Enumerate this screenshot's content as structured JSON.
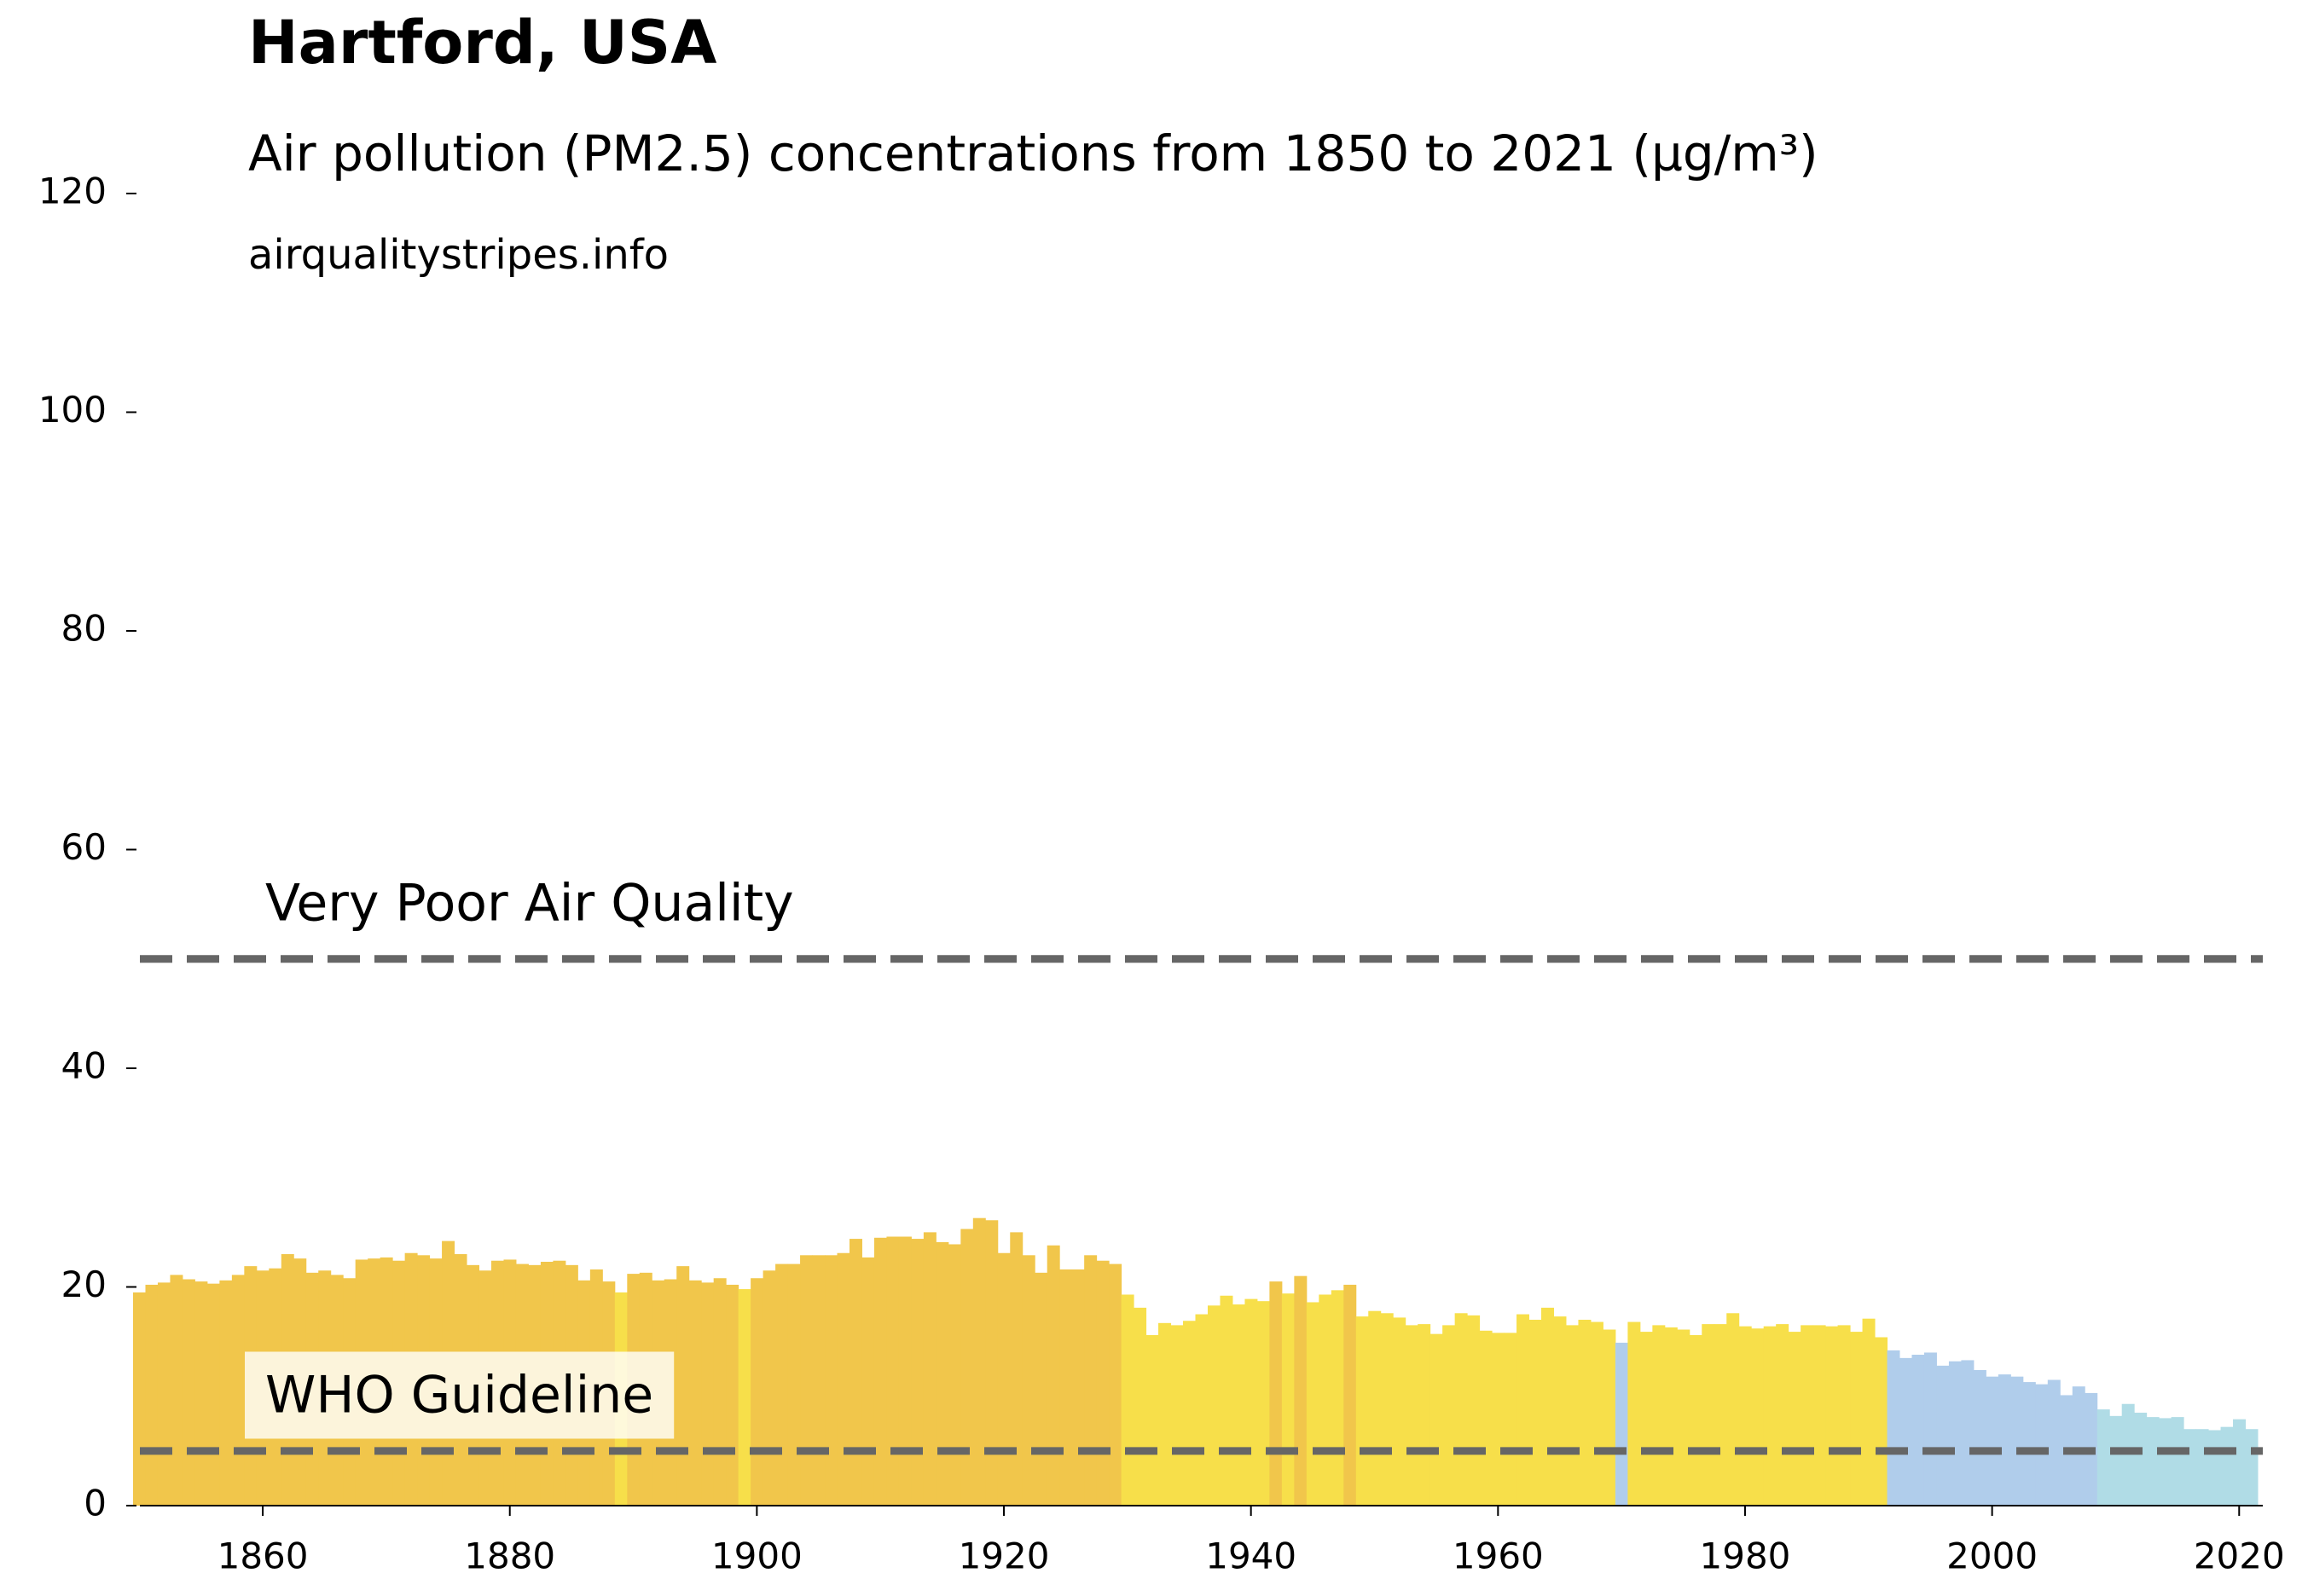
{
  "chart_data": {
    "type": "bar",
    "title": "Hartford, USA",
    "subtitle": "Air pollution (PM2.5) concentrations from 1850 to 2021 (µg/m³)",
    "source": "airqualitystripes.info",
    "x": [
      1850,
      1851,
      1852,
      1853,
      1854,
      1855,
      1856,
      1857,
      1858,
      1859,
      1860,
      1861,
      1862,
      1863,
      1864,
      1865,
      1866,
      1867,
      1868,
      1869,
      1870,
      1871,
      1872,
      1873,
      1874,
      1875,
      1876,
      1877,
      1878,
      1879,
      1880,
      1881,
      1882,
      1883,
      1884,
      1885,
      1886,
      1887,
      1888,
      1889,
      1890,
      1891,
      1892,
      1893,
      1894,
      1895,
      1896,
      1897,
      1898,
      1899,
      1900,
      1901,
      1902,
      1903,
      1904,
      1905,
      1906,
      1907,
      1908,
      1909,
      1910,
      1911,
      1912,
      1913,
      1914,
      1915,
      1916,
      1917,
      1918,
      1919,
      1920,
      1921,
      1922,
      1923,
      1924,
      1925,
      1926,
      1927,
      1928,
      1929,
      1930,
      1931,
      1932,
      1933,
      1934,
      1935,
      1936,
      1937,
      1938,
      1939,
      1940,
      1941,
      1942,
      1943,
      1944,
      1945,
      1946,
      1947,
      1948,
      1949,
      1950,
      1951,
      1952,
      1953,
      1954,
      1955,
      1956,
      1957,
      1958,
      1959,
      1960,
      1961,
      1962,
      1963,
      1964,
      1965,
      1966,
      1967,
      1968,
      1969,
      1970,
      1971,
      1972,
      1973,
      1974,
      1975,
      1976,
      1977,
      1978,
      1979,
      1980,
      1981,
      1982,
      1983,
      1984,
      1985,
      1986,
      1987,
      1988,
      1989,
      1990,
      1991,
      1992,
      1993,
      1994,
      1995,
      1996,
      1997,
      1998,
      1999,
      2000,
      2001,
      2002,
      2003,
      2004,
      2005,
      2006,
      2007,
      2008,
      2009,
      2010,
      2011,
      2012,
      2013,
      2014,
      2015,
      2016,
      2017,
      2018,
      2019,
      2020,
      2021
    ],
    "values": [
      19.5,
      20.2,
      20.4,
      21.1,
      20.7,
      20.5,
      20.3,
      20.6,
      21.1,
      21.9,
      21.5,
      21.7,
      23.0,
      22.6,
      21.3,
      21.5,
      21.1,
      20.8,
      22.5,
      22.6,
      22.7,
      22.4,
      23.1,
      22.9,
      22.6,
      24.2,
      23.0,
      22.0,
      21.5,
      22.4,
      22.5,
      22.1,
      22.0,
      22.3,
      22.4,
      22.0,
      20.6,
      21.6,
      20.5,
      19.5,
      21.2,
      21.3,
      20.6,
      20.7,
      21.9,
      20.6,
      20.4,
      20.8,
      20.2,
      19.8,
      20.8,
      21.5,
      22.1,
      22.1,
      22.9,
      22.9,
      22.9,
      23.1,
      24.4,
      22.7,
      24.5,
      24.6,
      24.6,
      24.4,
      25.0,
      24.1,
      23.9,
      25.3,
      26.3,
      26.1,
      23.1,
      25.0,
      22.9,
      21.3,
      23.8,
      21.6,
      21.6,
      22.9,
      22.4,
      22.1,
      19.3,
      18.1,
      15.6,
      16.7,
      16.5,
      16.9,
      17.5,
      18.3,
      19.2,
      18.4,
      18.9,
      18.7,
      20.5,
      19.4,
      21.0,
      18.6,
      19.3,
      19.7,
      20.2,
      17.3,
      17.8,
      17.6,
      17.2,
      16.5,
      16.6,
      15.7,
      16.5,
      17.6,
      17.4,
      16.0,
      15.8,
      15.8,
      17.5,
      17.0,
      18.1,
      17.3,
      16.5,
      17.0,
      16.8,
      16.1,
      14.9,
      16.8,
      15.9,
      16.5,
      16.3,
      16.1,
      15.6,
      16.6,
      16.6,
      17.6,
      16.4,
      16.2,
      16.4,
      16.6,
      15.9,
      16.5,
      16.5,
      16.4,
      16.5,
      15.9,
      17.1,
      15.4,
      14.2,
      13.5,
      13.8,
      14.0,
      12.8,
      13.2,
      13.3,
      12.4,
      11.8,
      12.0,
      11.8,
      11.3,
      11.1,
      11.5,
      10.1,
      10.9,
      10.3,
      8.8,
      8.2,
      9.3,
      8.5,
      8.1,
      8.0,
      8.1,
      7.0,
      7.0,
      6.9,
      7.2,
      7.9,
      7.0
    ],
    "colors": [
      "#f1c64b",
      "#f1c64b",
      "#f1c64b",
      "#f1c64b",
      "#f1c64b",
      "#f1c64b",
      "#f1c64b",
      "#f1c64b",
      "#f1c64b",
      "#f1c64b",
      "#f1c64b",
      "#f1c64b",
      "#f1c64b",
      "#f1c64b",
      "#f1c64b",
      "#f1c64b",
      "#f1c64b",
      "#f1c64b",
      "#f1c64b",
      "#f1c64b",
      "#f1c64b",
      "#f1c64b",
      "#f1c64b",
      "#f1c64b",
      "#f1c64b",
      "#f1c64b",
      "#f1c64b",
      "#f1c64b",
      "#f1c64b",
      "#f1c64b",
      "#f1c64b",
      "#f1c64b",
      "#f1c64b",
      "#f1c64b",
      "#f1c64b",
      "#f1c64b",
      "#f1c64b",
      "#f1c64b",
      "#f1c64b",
      "#f7df4a",
      "#f1c64b",
      "#f1c64b",
      "#f1c64b",
      "#f1c64b",
      "#f1c64b",
      "#f1c64b",
      "#f1c64b",
      "#f1c64b",
      "#f1c64b",
      "#f7df4a",
      "#f1c64b",
      "#f1c64b",
      "#f1c64b",
      "#f1c64b",
      "#f1c64b",
      "#f1c64b",
      "#f1c64b",
      "#f1c64b",
      "#f1c64b",
      "#f1c64b",
      "#f1c64b",
      "#f1c64b",
      "#f1c64b",
      "#f1c64b",
      "#f1c64b",
      "#f1c64b",
      "#f1c64b",
      "#f1c64b",
      "#f1c64b",
      "#f1c64b",
      "#f1c64b",
      "#f1c64b",
      "#f1c64b",
      "#f1c64b",
      "#f1c64b",
      "#f1c64b",
      "#f1c64b",
      "#f1c64b",
      "#f1c64b",
      "#f1c64b",
      "#f7df4a",
      "#f7df4a",
      "#f7df4a",
      "#f7df4a",
      "#f7df4a",
      "#f7df4a",
      "#f7df4a",
      "#f7df4a",
      "#f7df4a",
      "#f7df4a",
      "#f7df4a",
      "#f7df4a",
      "#f1c64b",
      "#f7df4a",
      "#f1c64b",
      "#f7df4a",
      "#f7df4a",
      "#f7df4a",
      "#f1c64b",
      "#f7df4a",
      "#f7df4a",
      "#f7df4a",
      "#f7df4a",
      "#f7df4a",
      "#f7df4a",
      "#f7df4a",
      "#f7df4a",
      "#f7df4a",
      "#f7df4a",
      "#f7df4a",
      "#f7df4a",
      "#f7df4a",
      "#f7df4a",
      "#f7df4a",
      "#f7df4a",
      "#f7df4a",
      "#f7df4a",
      "#f7df4a",
      "#f7df4a",
      "#f7df4a",
      "#b0cdeb",
      "#f7df4a",
      "#f7df4a",
      "#f7df4a",
      "#f7df4a",
      "#f7df4a",
      "#f7df4a",
      "#f7df4a",
      "#f7df4a",
      "#f7df4a",
      "#f7df4a",
      "#f7df4a",
      "#f7df4a",
      "#f7df4a",
      "#f7df4a",
      "#f7df4a",
      "#f7df4a",
      "#f7df4a",
      "#f7df4a",
      "#f7df4a",
      "#f7df4a",
      "#f7df4a",
      "#b0cdeb",
      "#b0cdeb",
      "#b0cdeb",
      "#b0cdeb",
      "#b0cdeb",
      "#b0cdeb",
      "#b0cdeb",
      "#b0cdeb",
      "#b0cdeb",
      "#b0cdeb",
      "#b0cdeb",
      "#b0cdeb",
      "#b0cdeb",
      "#b0cdeb",
      "#b0cdeb",
      "#b0cdeb",
      "#b0cdeb",
      "#b0dce6",
      "#b0dce6",
      "#b0dce6",
      "#b0dce6",
      "#b0dce6",
      "#b0dce6",
      "#b0dce6",
      "#b0dce6",
      "#b0dce6",
      "#b0dce6",
      "#b0dce6",
      "#b0dce6",
      "#b0dce6"
    ],
    "xlim": [
      1849.5,
      2021.5
    ],
    "ylim": [
      0,
      120.7
    ],
    "xticks": [
      1860,
      1880,
      1900,
      1920,
      1940,
      1960,
      1980,
      2000,
      2020
    ],
    "yticks": [
      0,
      20,
      40,
      60,
      80,
      100,
      120
    ],
    "reference_lines": [
      {
        "value": 50,
        "label": "Very Poor Air Quality"
      },
      {
        "value": 5,
        "label": "WHO Guideline"
      }
    ],
    "grid": false
  }
}
